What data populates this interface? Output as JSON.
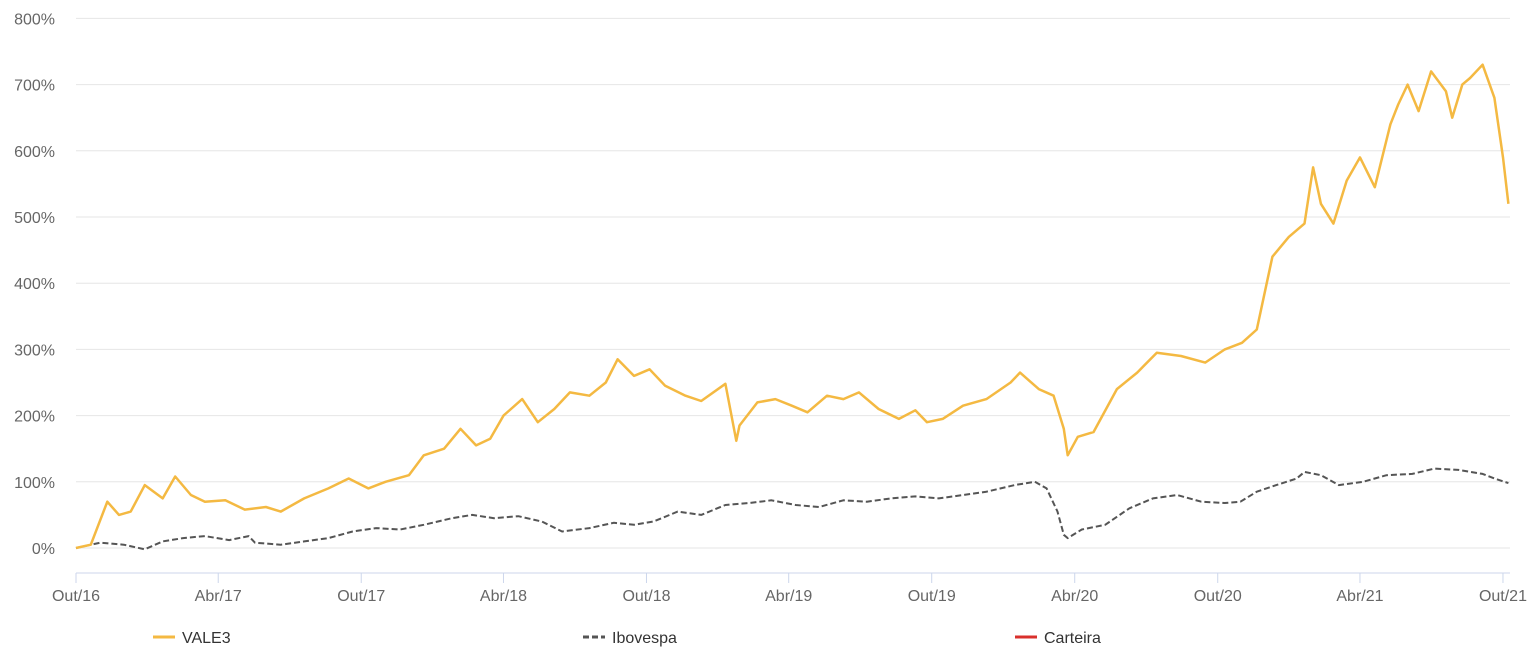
{
  "chart_data": {
    "type": "line",
    "title": "",
    "xlabel": "",
    "ylabel": "",
    "x_ticks": [
      "Out/16",
      "Abr/17",
      "Out/17",
      "Abr/18",
      "Out/18",
      "Abr/19",
      "Out/19",
      "Abr/20",
      "Out/20",
      "Abr/21",
      "Out/21"
    ],
    "y_ticks": [
      "0%",
      "100%",
      "200%",
      "300%",
      "400%",
      "500%",
      "600%",
      "700%",
      "800%"
    ],
    "ylim": [
      -40,
      800
    ],
    "xlim": [
      "2016-10-01",
      "2021-10-10"
    ],
    "grid": "horizontal",
    "legend_position": "bottom",
    "series": [
      {
        "name": "VALE3",
        "color": "#f4b942",
        "dash": "solid",
        "x": [
          "2016-10-01",
          "2016-10-20",
          "2016-11-10",
          "2016-11-25",
          "2016-12-10",
          "2016-12-28",
          "2017-01-20",
          "2017-02-05",
          "2017-02-25",
          "2017-03-15",
          "2017-04-10",
          "2017-05-05",
          "2017-06-01",
          "2017-06-20",
          "2017-07-20",
          "2017-08-20",
          "2017-09-15",
          "2017-10-10",
          "2017-11-01",
          "2017-12-01",
          "2017-12-20",
          "2018-01-15",
          "2018-02-05",
          "2018-02-25",
          "2018-03-15",
          "2018-04-01",
          "2018-04-25",
          "2018-05-15",
          "2018-06-05",
          "2018-06-25",
          "2018-07-20",
          "2018-08-10",
          "2018-08-25",
          "2018-09-15",
          "2018-10-05",
          "2018-10-25",
          "2018-11-20",
          "2018-12-10",
          "2019-01-10",
          "2019-01-24",
          "2019-01-28",
          "2019-02-20",
          "2019-03-15",
          "2019-04-05",
          "2019-04-25",
          "2019-05-20",
          "2019-06-10",
          "2019-06-30",
          "2019-07-25",
          "2019-08-20",
          "2019-09-10",
          "2019-09-25",
          "2019-10-15",
          "2019-11-10",
          "2019-12-10",
          "2020-01-10",
          "2020-01-22",
          "2020-02-15",
          "2020-03-05",
          "2020-03-18",
          "2020-03-23",
          "2020-04-05",
          "2020-04-25",
          "2020-05-25",
          "2020-06-20",
          "2020-07-15",
          "2020-08-15",
          "2020-09-15",
          "2020-10-10",
          "2020-11-01",
          "2020-11-20",
          "2020-12-10",
          "2020-12-31",
          "2021-01-20",
          "2021-01-31",
          "2021-02-10",
          "2021-02-26",
          "2021-03-15",
          "2021-04-01",
          "2021-04-20",
          "2021-05-10",
          "2021-05-20",
          "2021-06-01",
          "2021-06-15",
          "2021-07-01",
          "2021-07-20",
          "2021-07-28",
          "2021-08-10",
          "2021-08-20",
          "2021-09-05",
          "2021-09-20",
          "2021-10-01",
          "2021-10-08"
        ],
        "y": [
          0,
          5,
          70,
          50,
          55,
          95,
          75,
          108,
          80,
          70,
          72,
          58,
          62,
          55,
          75,
          90,
          105,
          90,
          100,
          110,
          140,
          150,
          180,
          155,
          165,
          200,
          225,
          190,
          210,
          235,
          230,
          250,
          285,
          260,
          270,
          245,
          230,
          222,
          248,
          162,
          185,
          220,
          225,
          215,
          205,
          230,
          225,
          235,
          210,
          195,
          208,
          190,
          195,
          215,
          225,
          250,
          265,
          240,
          230,
          180,
          140,
          168,
          175,
          240,
          265,
          295,
          290,
          280,
          300,
          310,
          330,
          440,
          470,
          490,
          575,
          520,
          490,
          555,
          590,
          545,
          640,
          670,
          700,
          660,
          720,
          690,
          650,
          700,
          710,
          730,
          680,
          590,
          520
        ]
      },
      {
        "name": "Ibovespa",
        "color": "#555555",
        "dash": "dashed",
        "x": [
          "2016-10-01",
          "2016-11-01",
          "2016-12-01",
          "2016-12-28",
          "2017-01-20",
          "2017-02-15",
          "2017-03-15",
          "2017-04-15",
          "2017-05-10",
          "2017-05-18",
          "2017-06-20",
          "2017-07-20",
          "2017-08-20",
          "2017-09-20",
          "2017-10-20",
          "2017-11-20",
          "2017-12-20",
          "2018-01-25",
          "2018-02-20",
          "2018-03-20",
          "2018-04-20",
          "2018-05-20",
          "2018-06-15",
          "2018-07-20",
          "2018-08-20",
          "2018-09-15",
          "2018-10-10",
          "2018-11-10",
          "2018-12-10",
          "2019-01-10",
          "2019-02-10",
          "2019-03-10",
          "2019-04-10",
          "2019-05-10",
          "2019-06-10",
          "2019-07-10",
          "2019-08-10",
          "2019-09-10",
          "2019-10-10",
          "2019-11-10",
          "2019-12-10",
          "2020-01-15",
          "2020-02-10",
          "2020-02-25",
          "2020-03-10",
          "2020-03-18",
          "2020-03-23",
          "2020-04-10",
          "2020-05-10",
          "2020-06-10",
          "2020-07-10",
          "2020-08-10",
          "2020-09-10",
          "2020-10-10",
          "2020-10-30",
          "2020-11-20",
          "2020-12-15",
          "2021-01-10",
          "2021-01-20",
          "2021-02-10",
          "2021-03-05",
          "2021-04-05",
          "2021-05-05",
          "2021-06-07",
          "2021-07-05",
          "2021-08-05",
          "2021-09-05",
          "2021-09-20",
          "2021-10-08"
        ],
        "y": [
          0,
          8,
          5,
          -2,
          10,
          15,
          18,
          12,
          18,
          8,
          5,
          10,
          15,
          25,
          30,
          28,
          35,
          45,
          50,
          45,
          48,
          40,
          25,
          30,
          38,
          35,
          40,
          55,
          50,
          65,
          68,
          72,
          65,
          62,
          72,
          70,
          75,
          78,
          75,
          80,
          85,
          95,
          100,
          90,
          55,
          20,
          15,
          28,
          35,
          60,
          75,
          80,
          70,
          68,
          70,
          85,
          95,
          105,
          115,
          110,
          95,
          100,
          110,
          112,
          120,
          118,
          112,
          105,
          98
        ]
      },
      {
        "name": "Carteira",
        "color": "#d9302c",
        "dash": "solid",
        "x": [],
        "y": []
      }
    ]
  }
}
